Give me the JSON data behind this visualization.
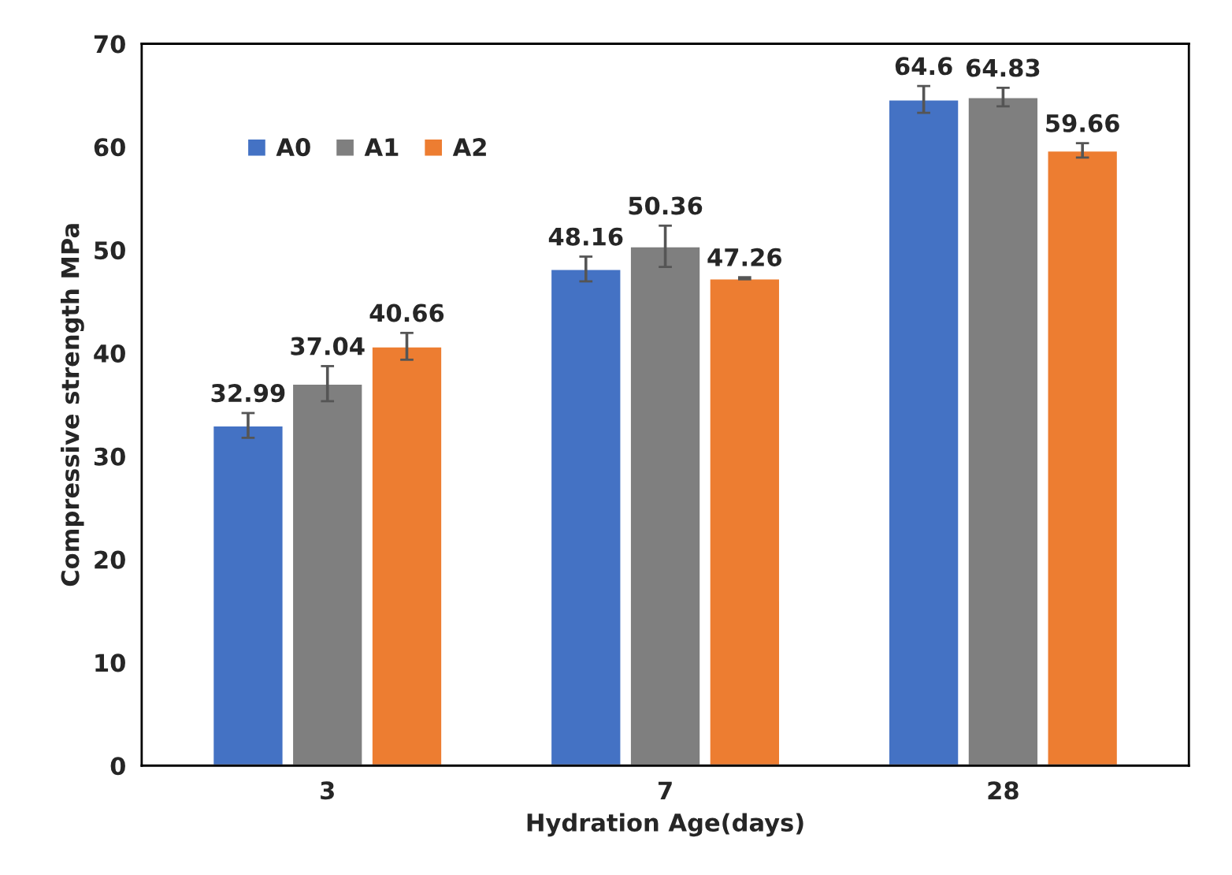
{
  "chart_data": {
    "type": "bar",
    "xlabel": "Hydration Age(days)",
    "ylabel": "Compressive strength MPa",
    "categories": [
      "3",
      "7",
      "28"
    ],
    "series": [
      {
        "name": "A0",
        "color": "#4472c4",
        "values": [
          32.99,
          48.16,
          64.6
        ],
        "errors": [
          1.2,
          1.2,
          1.3
        ]
      },
      {
        "name": "A1",
        "color": "#7f7f7f",
        "values": [
          37.04,
          50.36,
          64.83
        ],
        "errors": [
          1.7,
          2.0,
          0.9
        ]
      },
      {
        "name": "A2",
        "color": "#ed7d31",
        "values": [
          40.66,
          47.26,
          59.66
        ],
        "errors": [
          1.3,
          0.1,
          0.7
        ]
      }
    ],
    "ylim": [
      0,
      70
    ],
    "yticks": [
      0,
      10,
      20,
      30,
      40,
      50,
      60,
      70
    ],
    "data_labels": true,
    "grid": false,
    "legend": "top left"
  }
}
